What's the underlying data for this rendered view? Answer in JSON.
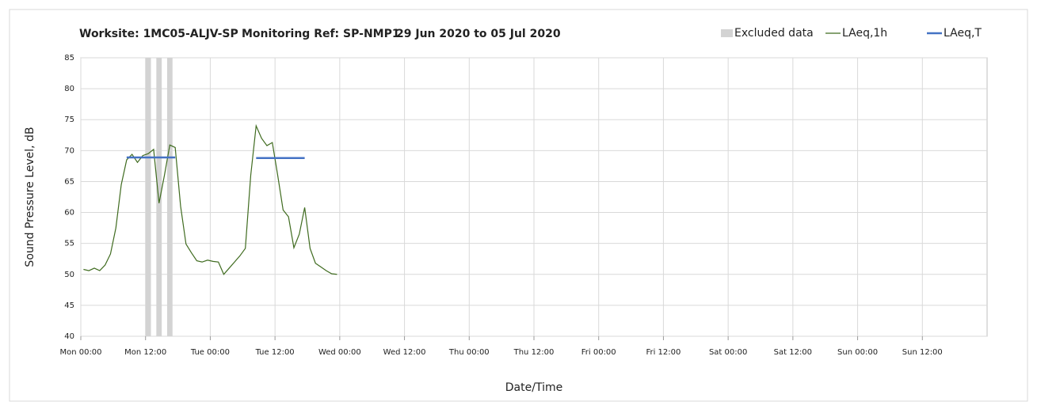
{
  "chart_data": {
    "type": "line",
    "title": [
      "Worksite: 1MC05-ALJV-SP",
      "Monitoring Ref: SP-NMP1",
      "29 Jun 2020 to 05 Jul 2020"
    ],
    "y_label": "Sound Pressure Level, dB",
    "x_label": "Date/Time",
    "xlim": [
      0,
      168
    ],
    "xticks": [
      {
        "value": 0,
        "label": "Mon 00:00"
      },
      {
        "value": 12,
        "label": "Mon 12:00"
      },
      {
        "value": 24,
        "label": "Tue 00:00"
      },
      {
        "value": 36,
        "label": "Tue 12:00"
      },
      {
        "value": 48,
        "label": "Wed 00:00"
      },
      {
        "value": 60,
        "label": "Wed 12:00"
      },
      {
        "value": 72,
        "label": "Thu 00:00"
      },
      {
        "value": 84,
        "label": "Thu 12:00"
      },
      {
        "value": 96,
        "label": "Fri 00:00"
      },
      {
        "value": 108,
        "label": "Fri 12:00"
      },
      {
        "value": 120,
        "label": "Sat 00:00"
      },
      {
        "value": 132,
        "label": "Sat 12:00"
      },
      {
        "value": 144,
        "label": "Sun 00:00"
      },
      {
        "value": 156,
        "label": "Sun 12:00"
      }
    ],
    "ylim": [
      40,
      85
    ],
    "yticks": [
      40,
      45,
      50,
      55,
      60,
      65,
      70,
      75,
      80,
      85
    ],
    "grid": true,
    "legend": "top-right",
    "excluded": {
      "name": "Excluded data",
      "color": "#d3d3d3",
      "ranges": [
        [
          12,
          13
        ],
        [
          14,
          15
        ],
        [
          16,
          17
        ]
      ]
    },
    "series": [
      {
        "name": "LAeq,1h",
        "color": "#3f6b1f",
        "x": [
          0.5,
          1.5,
          2.5,
          3.5,
          4.5,
          5.5,
          6.5,
          7.5,
          8.5,
          9.5,
          10.5,
          11.5,
          12.5,
          13.5,
          14.5,
          15.5,
          16.5,
          17.5,
          18.5,
          19.5,
          20.5,
          21.5,
          22.5,
          23.5,
          24.5,
          25.5,
          26.5,
          27.5,
          28.5,
          29.5,
          30.5,
          31.5,
          32.5,
          33.5,
          34.5,
          35.5,
          36.5,
          37.5,
          38.5,
          39.5,
          40.5,
          41.5,
          42.5,
          43.5,
          44.5,
          45.5,
          46.5,
          47.5
        ],
        "values": [
          50.8,
          50.6,
          51.0,
          50.6,
          51.5,
          53.3,
          57.5,
          64.5,
          68.5,
          69.4,
          68.1,
          69.2,
          69.5,
          70.2,
          61.5,
          66.0,
          70.9,
          70.5,
          61.0,
          54.9,
          53.5,
          52.2,
          52.0,
          52.3,
          52.1,
          52.0,
          50.0,
          51.0,
          52.0,
          53.0,
          54.2,
          66.0,
          74.0,
          72.0,
          70.8,
          71.3,
          66.0,
          60.4,
          59.3,
          54.3,
          56.5,
          60.8,
          54.2,
          51.8,
          51.2,
          50.6,
          50.1,
          50.0
        ]
      },
      {
        "name": "LAeq,T",
        "color": "#4472c4",
        "x": [
          8.5,
          17.5,
          null,
          32.5,
          41.5
        ],
        "values": [
          68.9,
          68.9,
          null,
          68.8,
          68.8
        ]
      }
    ]
  }
}
